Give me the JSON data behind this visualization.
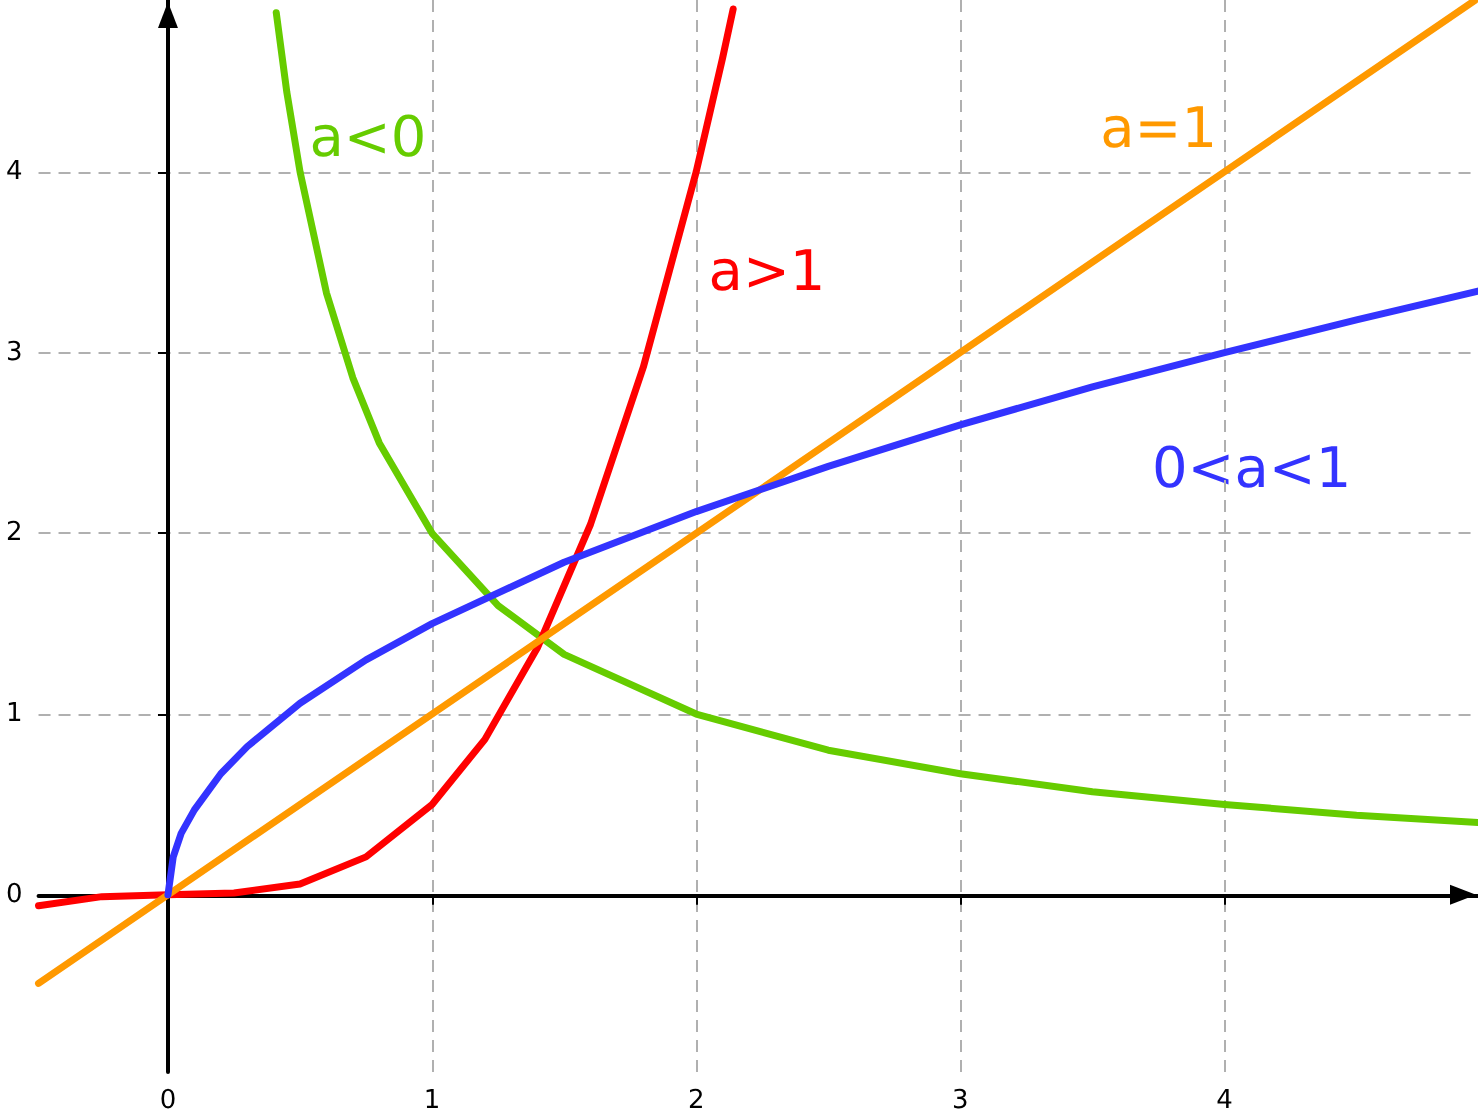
{
  "chart_data": {
    "type": "line",
    "xlim": [
      -0.49,
      4.96
    ],
    "ylim": [
      -0.98,
      4.95
    ],
    "xticks": [
      0,
      1,
      2,
      3,
      4
    ],
    "yticks": [
      0,
      1,
      2,
      3,
      4
    ],
    "grid": true,
    "marker": "none",
    "line_style": "solid",
    "series": [
      {
        "name": "a<0",
        "color": "#66cc00",
        "x": [
          0.41,
          0.45,
          0.5,
          0.6,
          0.7,
          0.8,
          1,
          1.25,
          1.5,
          2,
          2.5,
          3,
          3.5,
          4,
          4.5,
          4.96
        ],
        "values": [
          4.88,
          4.44,
          4,
          3.33,
          2.86,
          2.5,
          2,
          1.6,
          1.33,
          1,
          0.8,
          0.67,
          0.57,
          0.5,
          0.44,
          0.4
        ]
      },
      {
        "name": "a>1",
        "color": "#ff0000",
        "x": [
          -0.49,
          -0.25,
          0,
          0.25,
          0.5,
          0.75,
          1,
          1.2,
          1.4,
          1.6,
          1.8,
          2,
          2.1,
          2.14
        ],
        "values": [
          -0.06,
          -0.01,
          0,
          0.01,
          0.06,
          0.21,
          0.5,
          0.86,
          1.37,
          2.05,
          2.92,
          4,
          4.63,
          4.9
        ]
      },
      {
        "name": "a=1",
        "color": "#ff9900",
        "x": [
          -0.49,
          4.95
        ],
        "values": [
          -0.49,
          4.95
        ]
      },
      {
        "name": "0<a<1",
        "color": "#3333ff",
        "x": [
          0,
          0.02,
          0.05,
          0.1,
          0.2,
          0.3,
          0.5,
          0.75,
          1,
          1.5,
          2,
          2.5,
          3,
          3.5,
          4,
          4.5,
          4.96
        ],
        "values": [
          0,
          0.21,
          0.34,
          0.47,
          0.67,
          0.82,
          1.06,
          1.3,
          1.5,
          1.84,
          2.12,
          2.37,
          2.6,
          2.81,
          3,
          3.18,
          3.34
        ]
      }
    ]
  }
}
